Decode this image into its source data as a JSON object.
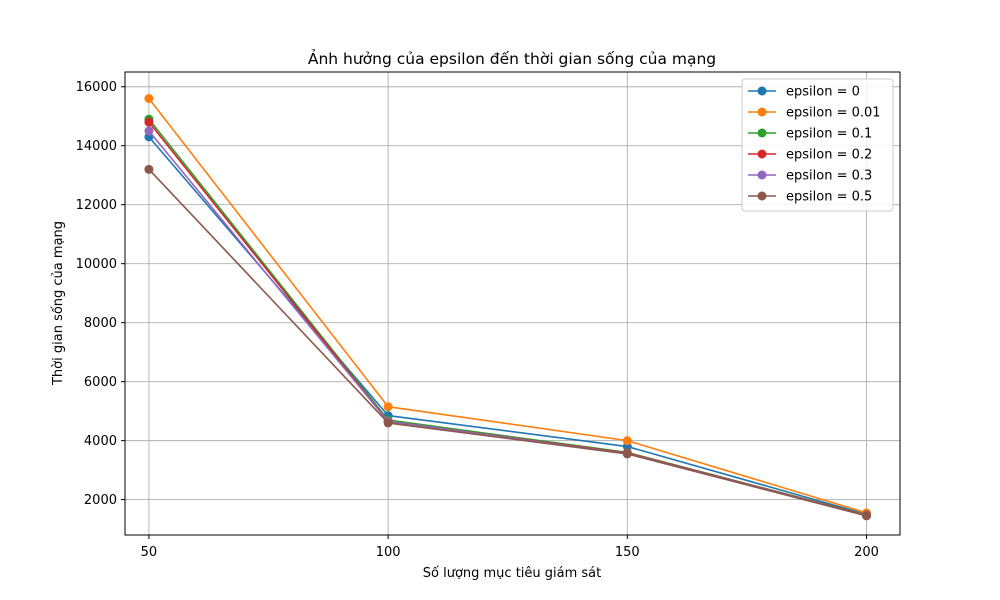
{
  "chart_data": {
    "type": "line",
    "title": "Ảnh hưởng của epsilon đến thời gian sống của mạng",
    "xlabel": "Số lượng mục tiêu giám sát",
    "ylabel": "Thời gian sống của mạng",
    "x": [
      50,
      100,
      150,
      200
    ],
    "x_ticks": [
      "50",
      "100",
      "150",
      "200"
    ],
    "y_ticks": [
      "2000",
      "4000",
      "6000",
      "8000",
      "10000",
      "12000",
      "14000",
      "16000"
    ],
    "xlim": [
      45,
      207
    ],
    "ylim": [
      800,
      16500
    ],
    "grid": true,
    "legend_position": "top-right",
    "marker": "circle",
    "series": [
      {
        "name": "epsilon = 0",
        "color": "#1f77b4",
        "values": [
          14300,
          4850,
          3800,
          1500
        ]
      },
      {
        "name": "epsilon = 0.01",
        "color": "#ff7f0e",
        "values": [
          15600,
          5150,
          4000,
          1550
        ]
      },
      {
        "name": "epsilon = 0.1",
        "color": "#2ca02c",
        "values": [
          14900,
          4700,
          3600,
          1480
        ]
      },
      {
        "name": "epsilon = 0.2",
        "color": "#d62728",
        "values": [
          14800,
          4650,
          3580,
          1470
        ]
      },
      {
        "name": "epsilon = 0.3",
        "color": "#9467bd",
        "values": [
          14500,
          4650,
          3560,
          1460
        ]
      },
      {
        "name": "epsilon = 0.5",
        "color": "#8c564b",
        "values": [
          13200,
          4600,
          3550,
          1450
        ]
      }
    ]
  }
}
